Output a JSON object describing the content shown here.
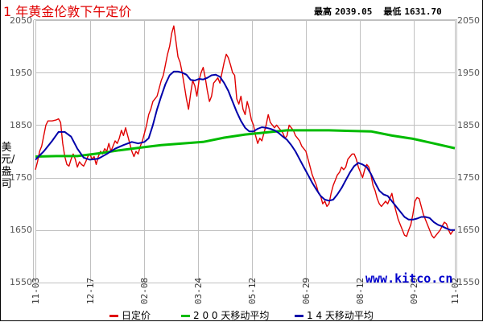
{
  "header": {
    "title": "1 年黄金伦敦下午定价",
    "high_label": "最高",
    "high_value": "2039.05",
    "low_label": "最低",
    "low_value": "1631.70"
  },
  "axis": {
    "ylabel": "美元/盎司",
    "yticks": [
      "2050",
      "1950",
      "1850",
      "1750",
      "1650",
      "1550"
    ],
    "xticks": [
      "11-03",
      "12-17",
      "02-08",
      "03-24",
      "05-12",
      "06-29",
      "08-12",
      "09-29",
      "11-02"
    ]
  },
  "watermark": "www.kitco.cn",
  "legend": [
    {
      "label": "日定价",
      "color": "#e00000"
    },
    {
      "label": "2 0 0 天移动平均",
      "color": "#00bb00"
    },
    {
      "label": "1 4 天移动平均",
      "color": "#0000aa"
    }
  ],
  "colors": {
    "daily": "#e00000",
    "ma200": "#00bb00",
    "ma14": "#0000aa",
    "grid": "#c0c0c0"
  },
  "chart_data": {
    "type": "line",
    "title": "1 年黄金伦敦下午定价",
    "xlabel": "",
    "ylabel": "美元/盎司",
    "ylim": [
      1550,
      2050
    ],
    "yticks": [
      1550,
      1650,
      1750,
      1850,
      1950,
      2050
    ],
    "xticks": [
      "11-03",
      "12-17",
      "02-08",
      "03-24",
      "05-12",
      "06-29",
      "08-12",
      "09-29",
      "11-02"
    ],
    "grid": true,
    "legend_position": "bottom",
    "x_range": [
      0,
      100
    ],
    "series": [
      {
        "name": "日定价",
        "color": "#e00000",
        "points": [
          [
            0,
            1765
          ],
          [
            0.5,
            1780
          ],
          [
            1,
            1800
          ],
          [
            1.5,
            1810
          ],
          [
            2,
            1830
          ],
          [
            2.5,
            1850
          ],
          [
            3,
            1858
          ],
          [
            4,
            1858
          ],
          [
            5,
            1860
          ],
          [
            5.5,
            1862
          ],
          [
            6,
            1855
          ],
          [
            6.5,
            1815
          ],
          [
            7,
            1790
          ],
          [
            7.5,
            1775
          ],
          [
            8,
            1772
          ],
          [
            8.5,
            1785
          ],
          [
            9,
            1795
          ],
          [
            9.5,
            1785
          ],
          [
            10,
            1770
          ],
          [
            10.5,
            1780
          ],
          [
            11,
            1775
          ],
          [
            11.5,
            1772
          ],
          [
            12,
            1780
          ],
          [
            12.5,
            1790
          ],
          [
            13,
            1795
          ],
          [
            13.5,
            1785
          ],
          [
            14,
            1790
          ],
          [
            14.5,
            1775
          ],
          [
            15,
            1790
          ],
          [
            15.5,
            1800
          ],
          [
            16,
            1795
          ],
          [
            16.5,
            1805
          ],
          [
            17,
            1800
          ],
          [
            17.5,
            1815
          ],
          [
            18,
            1800
          ],
          [
            18.5,
            1810
          ],
          [
            19,
            1820
          ],
          [
            19.5,
            1815
          ],
          [
            20,
            1825
          ],
          [
            20.5,
            1840
          ],
          [
            21,
            1830
          ],
          [
            21.5,
            1845
          ],
          [
            22,
            1830
          ],
          [
            22.5,
            1815
          ],
          [
            23,
            1800
          ],
          [
            23.5,
            1790
          ],
          [
            24,
            1800
          ],
          [
            24.5,
            1795
          ],
          [
            25,
            1810
          ],
          [
            25.5,
            1820
          ],
          [
            26,
            1835
          ],
          [
            26.5,
            1850
          ],
          [
            27,
            1870
          ],
          [
            27.5,
            1880
          ],
          [
            28,
            1895
          ],
          [
            28.5,
            1900
          ],
          [
            29,
            1905
          ],
          [
            29.5,
            1920
          ],
          [
            30,
            1935
          ],
          [
            30.5,
            1945
          ],
          [
            31,
            1965
          ],
          [
            31.5,
            1985
          ],
          [
            32,
            2000
          ],
          [
            32.5,
            2025
          ],
          [
            33,
            2039
          ],
          [
            33.5,
            2010
          ],
          [
            34,
            1980
          ],
          [
            34.5,
            1970
          ],
          [
            35,
            1950
          ],
          [
            35.5,
            1925
          ],
          [
            36,
            1900
          ],
          [
            36.5,
            1880
          ],
          [
            37,
            1910
          ],
          [
            37.5,
            1935
          ],
          [
            38,
            1925
          ],
          [
            38.5,
            1905
          ],
          [
            39,
            1935
          ],
          [
            39.5,
            1950
          ],
          [
            40,
            1960
          ],
          [
            40.5,
            1940
          ],
          [
            41,
            1915
          ],
          [
            41.5,
            1895
          ],
          [
            42,
            1905
          ],
          [
            42.5,
            1930
          ],
          [
            43,
            1935
          ],
          [
            43.5,
            1940
          ],
          [
            44,
            1930
          ],
          [
            44.5,
            1950
          ],
          [
            45,
            1970
          ],
          [
            45.5,
            1985
          ],
          [
            46,
            1978
          ],
          [
            46.5,
            1965
          ],
          [
            47,
            1950
          ],
          [
            47.5,
            1945
          ],
          [
            48,
            1900
          ],
          [
            48.5,
            1890
          ],
          [
            49,
            1905
          ],
          [
            49.5,
            1880
          ],
          [
            50,
            1870
          ],
          [
            50.5,
            1895
          ],
          [
            51,
            1880
          ],
          [
            51.5,
            1860
          ],
          [
            52,
            1850
          ],
          [
            52.5,
            1830
          ],
          [
            53,
            1815
          ],
          [
            53.5,
            1825
          ],
          [
            54,
            1820
          ],
          [
            54.5,
            1835
          ],
          [
            55,
            1850
          ],
          [
            55.5,
            1870
          ],
          [
            56,
            1855
          ],
          [
            56.5,
            1850
          ],
          [
            57,
            1845
          ],
          [
            57.5,
            1850
          ],
          [
            58,
            1845
          ],
          [
            58.5,
            1840
          ],
          [
            59,
            1835
          ],
          [
            59.5,
            1825
          ],
          [
            60,
            1830
          ],
          [
            60.5,
            1850
          ],
          [
            61,
            1845
          ],
          [
            61.5,
            1840
          ],
          [
            62,
            1830
          ],
          [
            62.5,
            1825
          ],
          [
            63,
            1820
          ],
          [
            63.5,
            1810
          ],
          [
            64,
            1805
          ],
          [
            64.5,
            1800
          ],
          [
            65,
            1785
          ],
          [
            65.5,
            1770
          ],
          [
            66,
            1755
          ],
          [
            66.5,
            1745
          ],
          [
            67,
            1735
          ],
          [
            67.5,
            1720
          ],
          [
            68,
            1715
          ],
          [
            68.5,
            1700
          ],
          [
            69,
            1705
          ],
          [
            69.5,
            1695
          ],
          [
            70,
            1700
          ],
          [
            70.5,
            1720
          ],
          [
            71,
            1735
          ],
          [
            71.5,
            1745
          ],
          [
            72,
            1755
          ],
          [
            72.5,
            1760
          ],
          [
            73,
            1770
          ],
          [
            73.5,
            1765
          ],
          [
            74,
            1770
          ],
          [
            74.5,
            1785
          ],
          [
            75,
            1790
          ],
          [
            75.5,
            1795
          ],
          [
            76,
            1795
          ],
          [
            76.5,
            1785
          ],
          [
            77,
            1770
          ],
          [
            77.5,
            1760
          ],
          [
            78,
            1750
          ],
          [
            78.5,
            1765
          ],
          [
            79,
            1775
          ],
          [
            79.5,
            1770
          ],
          [
            80,
            1755
          ],
          [
            80.5,
            1735
          ],
          [
            81,
            1725
          ],
          [
            81.5,
            1710
          ],
          [
            82,
            1700
          ],
          [
            82.5,
            1695
          ],
          [
            83,
            1700
          ],
          [
            83.5,
            1705
          ],
          [
            84,
            1700
          ],
          [
            84.5,
            1710
          ],
          [
            85,
            1720
          ],
          [
            85.5,
            1700
          ],
          [
            86,
            1685
          ],
          [
            86.5,
            1670
          ],
          [
            87,
            1660
          ],
          [
            87.5,
            1650
          ],
          [
            88,
            1640
          ],
          [
            88.5,
            1638
          ],
          [
            89,
            1650
          ],
          [
            89.5,
            1660
          ],
          [
            90,
            1680
          ],
          [
            90.5,
            1705
          ],
          [
            91,
            1712
          ],
          [
            91.5,
            1710
          ],
          [
            92,
            1695
          ],
          [
            92.5,
            1680
          ],
          [
            93,
            1670
          ],
          [
            93.5,
            1660
          ],
          [
            94,
            1650
          ],
          [
            94.5,
            1640
          ],
          [
            95,
            1635
          ],
          [
            95.5,
            1640
          ],
          [
            96,
            1645
          ],
          [
            96.5,
            1650
          ],
          [
            97,
            1658
          ],
          [
            97.5,
            1665
          ],
          [
            98,
            1662
          ],
          [
            98.5,
            1650
          ],
          [
            99,
            1642
          ],
          [
            99.5,
            1648
          ],
          [
            100,
            1651
          ]
        ]
      },
      {
        "name": "200 天移动平均",
        "color": "#00bb00",
        "points": [
          [
            0,
            1790
          ],
          [
            5,
            1791
          ],
          [
            10,
            1791
          ],
          [
            15,
            1796
          ],
          [
            20,
            1802
          ],
          [
            25,
            1807
          ],
          [
            30,
            1812
          ],
          [
            35,
            1815
          ],
          [
            40,
            1818
          ],
          [
            45,
            1826
          ],
          [
            50,
            1832
          ],
          [
            55,
            1836
          ],
          [
            60,
            1840
          ],
          [
            65,
            1840
          ],
          [
            70,
            1840
          ],
          [
            75,
            1839
          ],
          [
            80,
            1838
          ],
          [
            85,
            1830
          ],
          [
            90,
            1824
          ],
          [
            95,
            1815
          ],
          [
            100,
            1806
          ]
        ]
      },
      {
        "name": "14 天移动平均",
        "color": "#0000aa",
        "points": [
          [
            0,
            1784
          ],
          [
            2,
            1800
          ],
          [
            4,
            1820
          ],
          [
            5.5,
            1837
          ],
          [
            7,
            1837
          ],
          [
            8.5,
            1828
          ],
          [
            10,
            1805
          ],
          [
            11.5,
            1788
          ],
          [
            13,
            1784
          ],
          [
            15,
            1786
          ],
          [
            17,
            1795
          ],
          [
            19,
            1805
          ],
          [
            21,
            1812
          ],
          [
            23,
            1818
          ],
          [
            24.5,
            1815
          ],
          [
            26,
            1818
          ],
          [
            27,
            1825
          ],
          [
            28,
            1850
          ],
          [
            29,
            1880
          ],
          [
            30,
            1905
          ],
          [
            31,
            1928
          ],
          [
            32,
            1945
          ],
          [
            33,
            1952
          ],
          [
            34,
            1952
          ],
          [
            35,
            1950
          ],
          [
            36,
            1946
          ],
          [
            37,
            1936
          ],
          [
            38,
            1935
          ],
          [
            39,
            1938
          ],
          [
            40,
            1937
          ],
          [
            41,
            1940
          ],
          [
            42,
            1945
          ],
          [
            43,
            1946
          ],
          [
            44,
            1942
          ],
          [
            45,
            1930
          ],
          [
            46,
            1915
          ],
          [
            47,
            1895
          ],
          [
            48,
            1875
          ],
          [
            49,
            1858
          ],
          [
            50,
            1845
          ],
          [
            51,
            1838
          ],
          [
            52,
            1838
          ],
          [
            53,
            1843
          ],
          [
            54,
            1846
          ],
          [
            55,
            1845
          ],
          [
            56,
            1843
          ],
          [
            57,
            1840
          ],
          [
            58,
            1835
          ],
          [
            59,
            1828
          ],
          [
            60,
            1822
          ],
          [
            61,
            1812
          ],
          [
            62,
            1800
          ],
          [
            63,
            1785
          ],
          [
            64,
            1770
          ],
          [
            65,
            1755
          ],
          [
            66,
            1740
          ],
          [
            67,
            1727
          ],
          [
            68,
            1715
          ],
          [
            69,
            1708
          ],
          [
            70,
            1706
          ],
          [
            71,
            1708
          ],
          [
            72,
            1718
          ],
          [
            73,
            1730
          ],
          [
            74,
            1745
          ],
          [
            75,
            1760
          ],
          [
            76,
            1772
          ],
          [
            77,
            1778
          ],
          [
            78,
            1775
          ],
          [
            79,
            1770
          ],
          [
            80,
            1757
          ],
          [
            81,
            1740
          ],
          [
            82,
            1725
          ],
          [
            83,
            1718
          ],
          [
            84,
            1715
          ],
          [
            85,
            1705
          ],
          [
            86,
            1695
          ],
          [
            87,
            1685
          ],
          [
            88,
            1675
          ],
          [
            89,
            1670
          ],
          [
            90,
            1670
          ],
          [
            91,
            1672
          ],
          [
            92,
            1675
          ],
          [
            93,
            1675
          ],
          [
            94,
            1673
          ],
          [
            95,
            1665
          ],
          [
            96,
            1660
          ],
          [
            97,
            1657
          ],
          [
            98,
            1653
          ],
          [
            99,
            1650
          ],
          [
            100,
            1650
          ]
        ]
      }
    ]
  }
}
